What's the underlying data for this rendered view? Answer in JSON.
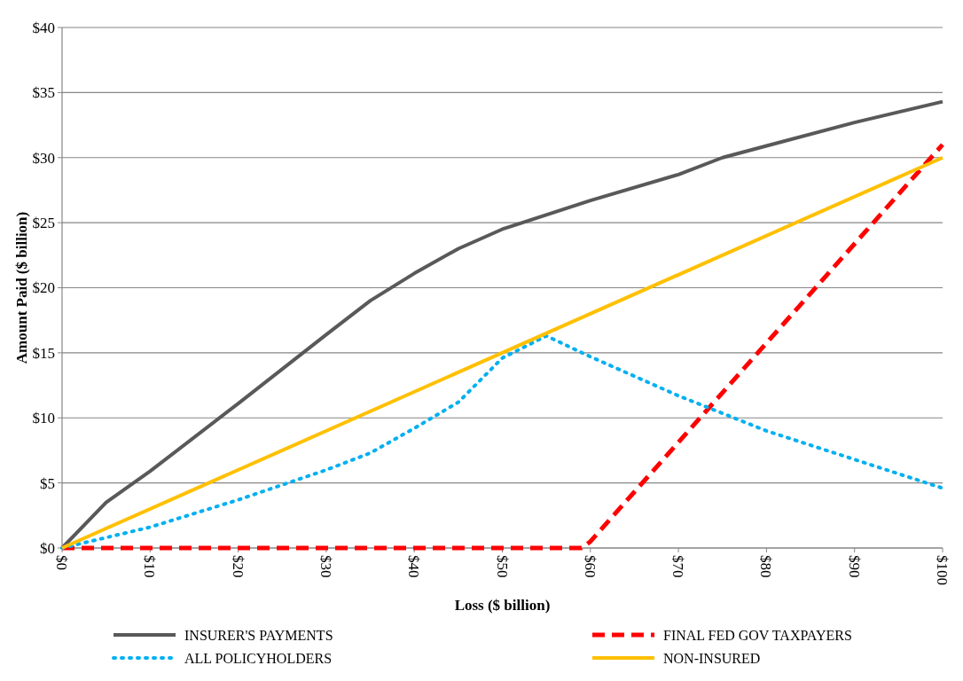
{
  "chart_data": {
    "type": "line",
    "xlabel": "Loss ($ billion)",
    "ylabel": "Amount Paid ($ billion)",
    "xlim": [
      0,
      100
    ],
    "ylim": [
      0,
      40
    ],
    "xticks": [
      {
        "value": 0,
        "label": "$0"
      },
      {
        "value": 10,
        "label": "$10"
      },
      {
        "value": 20,
        "label": "$20"
      },
      {
        "value": 30,
        "label": "$30"
      },
      {
        "value": 40,
        "label": "$40"
      },
      {
        "value": 50,
        "label": "$50"
      },
      {
        "value": 60,
        "label": "$60"
      },
      {
        "value": 70,
        "label": "$70"
      },
      {
        "value": 80,
        "label": "$80"
      },
      {
        "value": 90,
        "label": "$90"
      },
      {
        "value": 100,
        "label": "$100"
      }
    ],
    "yticks": [
      {
        "value": 0,
        "label": "$0"
      },
      {
        "value": 5,
        "label": "$5"
      },
      {
        "value": 10,
        "label": "$10"
      },
      {
        "value": 15,
        "label": "$15"
      },
      {
        "value": 20,
        "label": "$20"
      },
      {
        "value": 25,
        "label": "$25"
      },
      {
        "value": 30,
        "label": "$30"
      },
      {
        "value": 35,
        "label": "$35"
      },
      {
        "value": 40,
        "label": "$40"
      }
    ],
    "grid": "y",
    "legend": "bottom",
    "series": [
      {
        "name": "INSURER'S PAYMENTS",
        "color": "#595959",
        "line_style": "solid",
        "x": [
          0,
          5,
          10,
          20,
          30,
          35,
          40,
          45,
          50,
          60,
          70,
          75,
          80,
          90,
          100
        ],
        "values": [
          0,
          3.5,
          5.9,
          11.1,
          16.4,
          19,
          21.1,
          23,
          24.5,
          26.7,
          28.7,
          30,
          30.9,
          32.7,
          34.3
        ]
      },
      {
        "name": "FINAL FED GOV TAXPAYERS",
        "color": "#ff0000",
        "line_style": "dashed",
        "x": [
          0,
          59,
          60,
          100
        ],
        "values": [
          0,
          0,
          0.5,
          31
        ]
      },
      {
        "name": "ALL POLICYHOLDERS",
        "color": "#00b0f0",
        "line_style": "dotted",
        "x": [
          0,
          10,
          20,
          30,
          35,
          40,
          45,
          50,
          55,
          60,
          70,
          80,
          90,
          100
        ],
        "values": [
          0,
          1.6,
          3.7,
          6,
          7.3,
          9.2,
          11.2,
          14.6,
          16.3,
          14.7,
          11.7,
          9,
          6.8,
          4.6
        ]
      },
      {
        "name": "NON-INSURED",
        "color": "#ffc000",
        "line_style": "solid",
        "x": [
          0,
          100
        ],
        "values": [
          0,
          30
        ]
      }
    ]
  }
}
